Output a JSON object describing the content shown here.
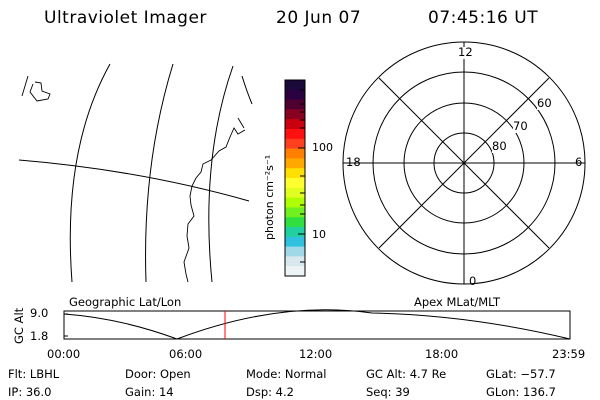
{
  "header": {
    "instrument": "Ultraviolet Imager",
    "date": "20 Jun 07",
    "time": "07:45:16 UT"
  },
  "colorbar": {
    "unit_label": "photon cm⁻²s⁻¹",
    "tick_labels": [
      "100",
      "10"
    ],
    "colors": [
      "#1a0a3a",
      "#2a0040",
      "#500030",
      "#8a0020",
      "#c80010",
      "#ff1010",
      "#ff4020",
      "#ff8000",
      "#ffa800",
      "#ffe000",
      "#ffff30",
      "#e0ff20",
      "#b0ff00",
      "#70f020",
      "#30e040",
      "#20d0a0",
      "#30c0e0",
      "#a0d8e8",
      "#d8e8ee",
      "#eef4f6"
    ]
  },
  "polar": {
    "mlt_labels": [
      "12",
      "18",
      "6",
      "0"
    ],
    "mlat_labels": [
      "60",
      "70",
      "80"
    ]
  },
  "panels": {
    "left_label": "Geographic Lat/Lon",
    "right_label": "Apex MLat/MLT"
  },
  "timeline": {
    "axis_label": "GC Alt",
    "y_ticks": [
      "9.0",
      "1.8"
    ],
    "x_ticks": [
      "00:00",
      "06:00",
      "12:00",
      "18:00",
      "23:59"
    ],
    "current_marker_color": "#ff0000"
  },
  "status": {
    "filter": "Flt: LBHL",
    "ip": "IP: 36.0",
    "door": "Door: Open",
    "gain": "Gain: 14",
    "mode": "Mode: Normal",
    "dsp": "Dsp:     4.2",
    "gc_alt": "GC Alt: 4.7 Re",
    "seq": "Seq: 39",
    "glat": "GLat: −57.7",
    "glon": "GLon: 136.7"
  }
}
